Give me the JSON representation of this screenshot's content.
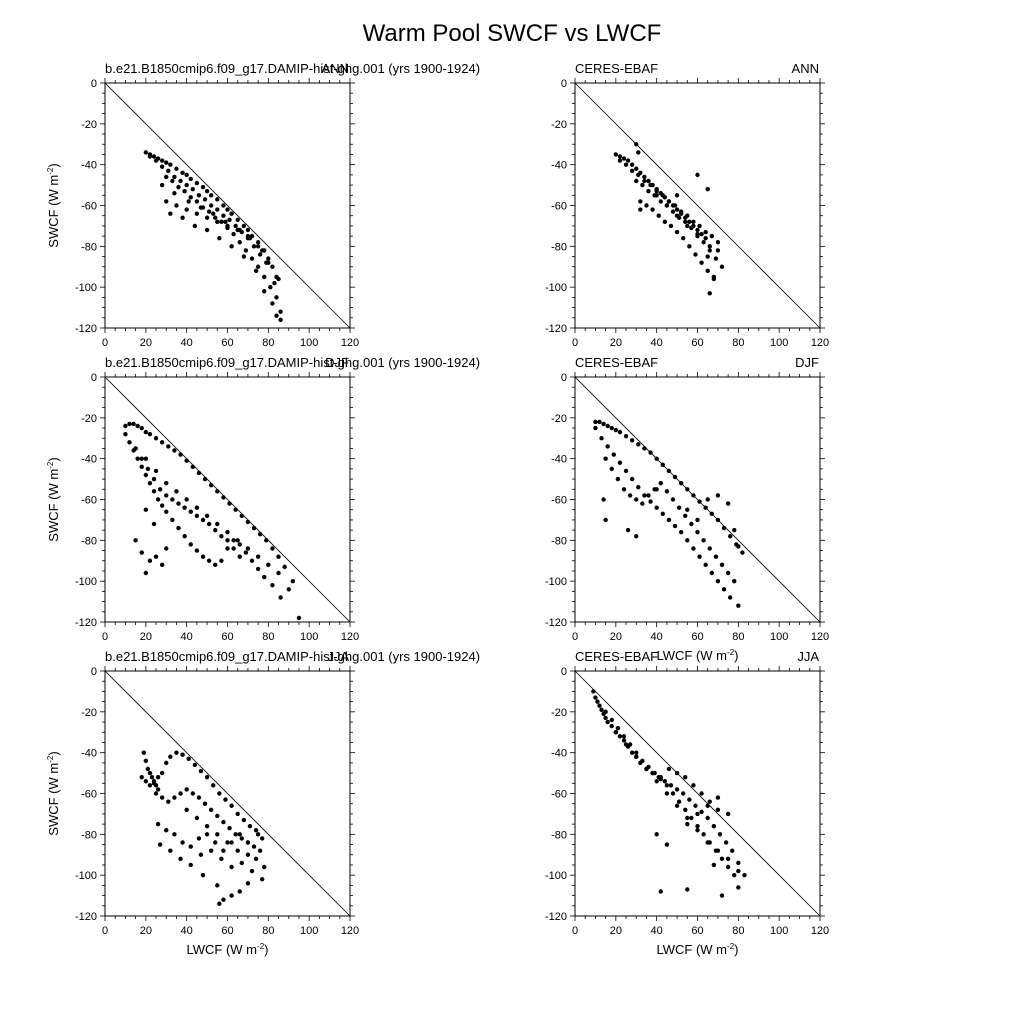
{
  "figure": {
    "title": "Warm Pool SWCF vs LWCF"
  },
  "chart_data": [
    {
      "type": "scatter",
      "panel": "model-ann",
      "left_title": "b.e21.B1850cmip6.f09_g17.DAMIP-hist-ghg.001 (yrs 1900-1924)",
      "right_title": "ANN",
      "xlabel": "LWCF (W m",
      "ylabel": "SWCF (W m",
      "label_superscript": "-2",
      "label_close": ")",
      "show_xlabel": false,
      "show_ylabel": true,
      "xlim": [
        0,
        120
      ],
      "ylim": [
        -120,
        0
      ],
      "xticks": [
        "0",
        "20",
        "40",
        "60",
        "80",
        "100",
        "120"
      ],
      "yticks": [
        "0",
        "-20",
        "-40",
        "-60",
        "-80",
        "-100",
        "-120"
      ],
      "reference_line": "1:1 (SWCF = -LWCF)",
      "x": [
        20,
        22,
        24,
        26,
        28,
        30,
        32,
        35,
        38,
        40,
        42,
        45,
        48,
        50,
        52,
        55,
        58,
        60,
        62,
        65,
        68,
        70,
        72,
        75,
        78,
        80,
        82,
        85,
        22,
        25,
        28,
        31,
        34,
        37,
        40,
        43,
        46,
        49,
        52,
        55,
        58,
        61,
        64,
        67,
        70,
        73,
        76,
        79,
        30,
        33,
        36,
        39,
        42,
        45,
        48,
        51,
        54,
        57,
        60,
        63,
        66,
        69,
        72,
        75,
        78,
        81,
        84,
        86,
        30,
        35,
        40,
        45,
        50,
        55,
        60,
        65,
        70,
        75,
        80,
        84,
        32,
        38,
        44,
        50,
        56,
        62,
        68,
        74,
        78,
        82,
        84,
        86,
        28,
        34,
        41,
        47,
        53,
        59,
        66,
        71,
        77,
        83
      ],
      "y": [
        -34,
        -35,
        -36,
        -37,
        -38,
        -39,
        -40,
        -42,
        -44,
        -45,
        -47,
        -49,
        -51,
        -53,
        -55,
        -57,
        -60,
        -62,
        -64,
        -67,
        -70,
        -72,
        -75,
        -78,
        -82,
        -86,
        -90,
        -96,
        -36,
        -38,
        -41,
        -43,
        -46,
        -48,
        -50,
        -52,
        -55,
        -57,
        -60,
        -62,
        -65,
        -67,
        -70,
        -73,
        -76,
        -80,
        -84,
        -88,
        -46,
        -48,
        -51,
        -53,
        -56,
        -58,
        -61,
        -63,
        -66,
        -68,
        -71,
        -74,
        -78,
        -82,
        -86,
        -90,
        -95,
        -100,
        -105,
        -112,
        -58,
        -60,
        -62,
        -64,
        -66,
        -68,
        -70,
        -72,
        -75,
        -80,
        -88,
        -95,
        -64,
        -66,
        -70,
        -72,
        -76,
        -80,
        -85,
        -92,
        -102,
        -108,
        -114,
        -116,
        -50,
        -54,
        -58,
        -61,
        -64,
        -68,
        -72,
        -76,
        -82,
        -98
      ]
    },
    {
      "type": "scatter",
      "panel": "obs-ann",
      "left_title": "CERES-EBAF",
      "right_title": "ANN",
      "xlabel": "LWCF (W m",
      "ylabel": "SWCF (W m",
      "label_superscript": "-2",
      "label_close": ")",
      "show_xlabel": false,
      "show_ylabel": false,
      "xlim": [
        0,
        120
      ],
      "ylim": [
        -120,
        0
      ],
      "xticks": [
        "0",
        "20",
        "40",
        "60",
        "80",
        "100",
        "120"
      ],
      "yticks": [
        "0",
        "-20",
        "-40",
        "-60",
        "-80",
        "-100",
        "-120"
      ],
      "reference_line": "1:1 (SWCF = -LWCF)",
      "x": [
        20,
        22,
        24,
        26,
        28,
        30,
        32,
        34,
        36,
        38,
        40,
        42,
        44,
        46,
        48,
        50,
        52,
        54,
        56,
        58,
        60,
        62,
        64,
        66,
        22,
        25,
        28,
        31,
        34,
        37,
        40,
        43,
        46,
        49,
        52,
        55,
        58,
        61,
        64,
        67,
        70,
        30,
        33,
        36,
        39,
        42,
        45,
        48,
        51,
        54,
        57,
        60,
        63,
        66,
        69,
        72,
        32,
        35,
        38,
        41,
        44,
        47,
        50,
        53,
        56,
        59,
        62,
        65,
        68,
        40,
        45,
        50,
        55,
        60,
        65,
        68,
        30,
        31,
        32,
        50,
        60,
        65,
        66,
        70
      ],
      "y": [
        -35,
        -36,
        -37,
        -38,
        -40,
        -42,
        -44,
        -46,
        -48,
        -50,
        -52,
        -54,
        -56,
        -58,
        -60,
        -62,
        -64,
        -66,
        -68,
        -70,
        -72,
        -74,
        -76,
        -80,
        -38,
        -40,
        -43,
        -45,
        -48,
        -50,
        -53,
        -55,
        -58,
        -60,
        -63,
        -65,
        -68,
        -70,
        -73,
        -75,
        -78,
        -48,
        -50,
        -53,
        -55,
        -58,
        -60,
        -63,
        -66,
        -68,
        -71,
        -74,
        -78,
        -82,
        -86,
        -90,
        -58,
        -60,
        -62,
        -65,
        -68,
        -70,
        -73,
        -76,
        -80,
        -84,
        -88,
        -92,
        -96,
        -55,
        -60,
        -65,
        -70,
        -75,
        -85,
        -95,
        -30,
        -34,
        -62,
        -55,
        -45,
        -52,
        -103,
        -82
      ]
    },
    {
      "type": "scatter",
      "panel": "model-djf",
      "left_title": "b.e21.B1850cmip6.f09_g17.DAMIP-hist-ghg.001 (yrs 1900-1924)",
      "right_title": "DJF",
      "xlabel": "LWCF (W m",
      "ylabel": "SWCF (W m",
      "label_superscript": "-2",
      "label_close": ")",
      "show_xlabel": false,
      "show_ylabel": true,
      "xlim": [
        0,
        120
      ],
      "ylim": [
        -120,
        0
      ],
      "xticks": [
        "0",
        "20",
        "40",
        "60",
        "80",
        "100",
        "120"
      ],
      "yticks": [
        "0",
        "-20",
        "-40",
        "-60",
        "-80",
        "-100",
        "-120"
      ],
      "reference_line": "1:1 (SWCF = -LWCF)",
      "x": [
        10,
        12,
        14,
        16,
        18,
        20,
        22,
        25,
        28,
        31,
        34,
        37,
        40,
        43,
        46,
        49,
        52,
        55,
        58,
        61,
        64,
        67,
        70,
        73,
        76,
        79,
        82,
        85,
        88,
        92,
        95,
        10,
        12,
        14,
        16,
        18,
        20,
        22,
        24,
        26,
        28,
        30,
        33,
        36,
        39,
        42,
        45,
        48,
        51,
        54,
        57,
        60,
        63,
        66,
        69,
        72,
        75,
        78,
        82,
        86,
        15,
        18,
        21,
        24,
        27,
        30,
        33,
        36,
        39,
        42,
        45,
        48,
        51,
        54,
        57,
        60,
        63,
        66,
        20,
        25,
        30,
        35,
        40,
        45,
        50,
        55,
        60,
        65,
        70,
        75,
        80,
        85,
        90,
        15,
        18,
        20,
        22,
        25,
        28,
        30,
        20,
        24
      ],
      "y": [
        -24,
        -23,
        -23,
        -24,
        -25,
        -27,
        -28,
        -30,
        -32,
        -34,
        -36,
        -38,
        -41,
        -44,
        -47,
        -50,
        -53,
        -56,
        -59,
        -62,
        -65,
        -68,
        -71,
        -74,
        -77,
        -80,
        -84,
        -88,
        -93,
        -100,
        -118,
        -28,
        -32,
        -36,
        -40,
        -44,
        -48,
        -52,
        -56,
        -60,
        -63,
        -66,
        -70,
        -74,
        -78,
        -82,
        -85,
        -88,
        -90,
        -92,
        -90,
        -84,
        -80,
        -82,
        -86,
        -90,
        -94,
        -98,
        -102,
        -108,
        -35,
        -40,
        -45,
        -50,
        -55,
        -58,
        -60,
        -62,
        -64,
        -66,
        -68,
        -70,
        -72,
        -75,
        -78,
        -80,
        -84,
        -88,
        -40,
        -46,
        -52,
        -56,
        -60,
        -64,
        -68,
        -72,
        -76,
        -80,
        -84,
        -88,
        -92,
        -96,
        -104,
        -80,
        -86,
        -96,
        -90,
        -88,
        -92,
        -84,
        -65,
        -72
      ]
    },
    {
      "type": "scatter",
      "panel": "obs-djf",
      "left_title": "CERES-EBAF",
      "right_title": "DJF",
      "xlabel": "LWCF (W m",
      "ylabel": "SWCF (W m",
      "label_superscript": "-2",
      "label_close": ")",
      "show_xlabel": true,
      "show_ylabel": false,
      "xlim": [
        0,
        120
      ],
      "ylim": [
        -120,
        0
      ],
      "xticks": [
        "0",
        "20",
        "40",
        "60",
        "80",
        "100",
        "120"
      ],
      "yticks": [
        "0",
        "-20",
        "-40",
        "-60",
        "-80",
        "-100",
        "-120"
      ],
      "reference_line": "1:1 (SWCF = -LWCF)",
      "x": [
        10,
        12,
        14,
        16,
        18,
        20,
        22,
        25,
        28,
        31,
        34,
        37,
        40,
        43,
        46,
        49,
        52,
        55,
        58,
        61,
        64,
        67,
        70,
        73,
        76,
        79,
        82,
        10,
        13,
        16,
        19,
        22,
        25,
        28,
        31,
        34,
        37,
        40,
        43,
        46,
        49,
        52,
        55,
        58,
        61,
        64,
        67,
        70,
        73,
        76,
        80,
        15,
        18,
        21,
        24,
        27,
        30,
        33,
        36,
        39,
        42,
        45,
        48,
        51,
        54,
        57,
        60,
        63,
        66,
        69,
        72,
        75,
        78,
        14,
        15,
        26,
        30,
        40,
        55,
        60,
        65,
        70,
        75,
        78,
        80
      ],
      "y": [
        -22,
        -22,
        -23,
        -24,
        -25,
        -26,
        -27,
        -29,
        -31,
        -33,
        -35,
        -37,
        -40,
        -43,
        -46,
        -49,
        -52,
        -55,
        -58,
        -61,
        -64,
        -67,
        -70,
        -74,
        -78,
        -82,
        -86,
        -25,
        -30,
        -34,
        -38,
        -42,
        -46,
        -50,
        -54,
        -58,
        -61,
        -64,
        -67,
        -70,
        -73,
        -76,
        -80,
        -84,
        -88,
        -92,
        -96,
        -100,
        -104,
        -108,
        -112,
        -40,
        -45,
        -50,
        -55,
        -58,
        -60,
        -62,
        -58,
        -55,
        -52,
        -56,
        -60,
        -64,
        -68,
        -72,
        -76,
        -80,
        -84,
        -88,
        -92,
        -96,
        -100,
        -60,
        -70,
        -75,
        -78,
        -55,
        -65,
        -70,
        -60,
        -58,
        -62,
        -75,
        -83
      ]
    },
    {
      "type": "scatter",
      "panel": "model-jja",
      "left_title": "b.e21.B1850cmip6.f09_g17.DAMIP-hist-ghg.001 (yrs 1900-1924)",
      "right_title": "JJA",
      "xlabel": "LWCF (W m",
      "ylabel": "SWCF (W m",
      "label_superscript": "-2",
      "label_close": ")",
      "show_xlabel": true,
      "show_ylabel": true,
      "xlim": [
        0,
        120
      ],
      "ylim": [
        -120,
        0
      ],
      "xticks": [
        "0",
        "20",
        "40",
        "60",
        "80",
        "100",
        "120"
      ],
      "yticks": [
        "0",
        "-20",
        "-40",
        "-60",
        "-80",
        "-100",
        "-120"
      ],
      "reference_line": "1:1 (SWCF = -LWCF)",
      "x": [
        19,
        20,
        21,
        22,
        23,
        24,
        25,
        26,
        18,
        20,
        22,
        24,
        26,
        28,
        30,
        32,
        35,
        38,
        41,
        44,
        47,
        50,
        53,
        56,
        59,
        62,
        65,
        68,
        71,
        74,
        77,
        25,
        28,
        31,
        34,
        37,
        40,
        43,
        46,
        49,
        52,
        55,
        58,
        61,
        64,
        67,
        70,
        73,
        76,
        26,
        30,
        34,
        38,
        42,
        46,
        50,
        54,
        58,
        62,
        66,
        70,
        74,
        78,
        27,
        32,
        37,
        42,
        47,
        52,
        57,
        62,
        67,
        72,
        77,
        40,
        45,
        50,
        55,
        60,
        65,
        70,
        75,
        48,
        55,
        58,
        62,
        66,
        70,
        56
      ],
      "y": [
        -40,
        -44,
        -48,
        -50,
        -52,
        -54,
        -56,
        -58,
        -52,
        -54,
        -56,
        -55,
        -52,
        -50,
        -45,
        -42,
        -40,
        -41,
        -43,
        -46,
        -49,
        -52,
        -56,
        -60,
        -63,
        -66,
        -70,
        -73,
        -76,
        -78,
        -82,
        -60,
        -62,
        -64,
        -62,
        -60,
        -58,
        -60,
        -62,
        -65,
        -68,
        -71,
        -74,
        -77,
        -80,
        -82,
        -84,
        -86,
        -88,
        -75,
        -78,
        -80,
        -84,
        -86,
        -82,
        -80,
        -84,
        -88,
        -84,
        -80,
        -90,
        -92,
        -96,
        -85,
        -88,
        -92,
        -95,
        -90,
        -88,
        -92,
        -96,
        -94,
        -98,
        -102,
        -68,
        -72,
        -76,
        -80,
        -84,
        -88,
        -84,
        -80,
        -100,
        -105,
        -112,
        -110,
        -108,
        -104,
        -114
      ]
    },
    {
      "type": "scatter",
      "panel": "obs-jja",
      "left_title": "CERES-EBAF",
      "right_title": "JJA",
      "xlabel": "LWCF (W m",
      "ylabel": "SWCF (W m",
      "label_superscript": "-2",
      "label_close": ")",
      "show_xlabel": true,
      "show_ylabel": false,
      "xlim": [
        0,
        120
      ],
      "ylim": [
        -120,
        0
      ],
      "xticks": [
        "0",
        "20",
        "40",
        "60",
        "80",
        "100",
        "120"
      ],
      "yticks": [
        "0",
        "-20",
        "-40",
        "-60",
        "-80",
        "-100",
        "-120"
      ],
      "reference_line": "1:1 (SWCF = -LWCF)",
      "x": [
        9,
        10,
        11,
        12,
        13,
        14,
        15,
        16,
        18,
        20,
        22,
        24,
        26,
        28,
        30,
        32,
        35,
        38,
        41,
        44,
        47,
        50,
        53,
        56,
        59,
        62,
        65,
        68,
        71,
        74,
        77,
        80,
        83,
        15,
        18,
        21,
        24,
        27,
        30,
        33,
        36,
        39,
        42,
        45,
        48,
        51,
        54,
        57,
        60,
        63,
        66,
        69,
        72,
        75,
        78,
        20,
        25,
        30,
        35,
        40,
        45,
        50,
        55,
        60,
        65,
        70,
        75,
        80,
        38,
        42,
        46,
        50,
        54,
        58,
        62,
        66,
        70,
        40,
        45,
        55,
        60,
        65,
        70,
        75,
        80,
        42,
        55,
        68,
        72
      ],
      "y": [
        -10,
        -13,
        -15,
        -17,
        -19,
        -21,
        -23,
        -25,
        -27,
        -30,
        -32,
        -34,
        -37,
        -40,
        -42,
        -45,
        -48,
        -50,
        -52,
        -54,
        -56,
        -58,
        -60,
        -63,
        -66,
        -69,
        -72,
        -76,
        -80,
        -84,
        -88,
        -94,
        -100,
        -20,
        -24,
        -28,
        -32,
        -36,
        -40,
        -44,
        -47,
        -50,
        -53,
        -56,
        -60,
        -64,
        -68,
        -72,
        -76,
        -80,
        -84,
        -88,
        -92,
        -96,
        -100,
        -30,
        -36,
        -42,
        -48,
        -54,
        -60,
        -66,
        -72,
        -78,
        -84,
        -88,
        -92,
        -98,
        -50,
        -52,
        -48,
        -50,
        -52,
        -56,
        -60,
        -64,
        -68,
        -80,
        -85,
        -75,
        -70,
        -66,
        -62,
        -70,
        -106,
        -108,
        -107,
        -95,
        -110
      ]
    }
  ]
}
